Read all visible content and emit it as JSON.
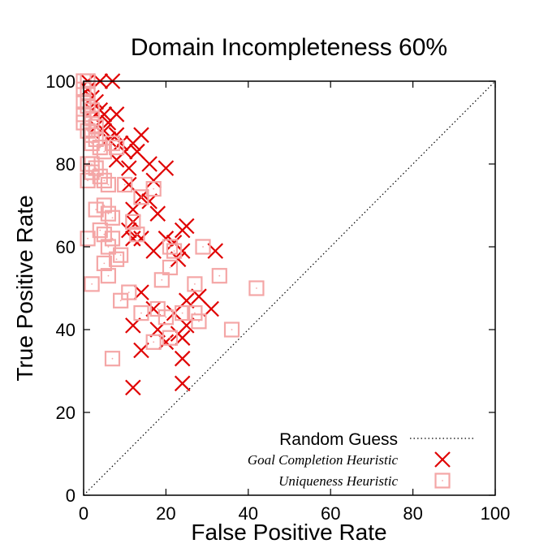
{
  "chart_data": {
    "type": "scatter",
    "title": "Domain Incompleteness 60%",
    "xlabel": "False Positive Rate",
    "ylabel": "True Positive Rate",
    "xlim": [
      0,
      100
    ],
    "ylim": [
      0,
      100
    ],
    "xticks": [
      "0",
      "20",
      "40",
      "60",
      "80",
      "100"
    ],
    "yticks": [
      "0",
      "20",
      "40",
      "60",
      "80",
      "100"
    ],
    "grid": false,
    "legend_position": "bottom-right",
    "random_guess": {
      "name": "Random Guess",
      "x": [
        0,
        100
      ],
      "y": [
        0,
        100
      ]
    },
    "series": [
      {
        "name": "Goal Completion Heuristic",
        "marker": "x",
        "color": "#e00000",
        "points": [
          [
            1,
            100
          ],
          [
            4,
            100
          ],
          [
            7,
            100
          ],
          [
            1,
            98
          ],
          [
            2,
            96
          ],
          [
            3,
            95
          ],
          [
            2,
            93
          ],
          [
            4,
            93
          ],
          [
            5,
            92
          ],
          [
            8,
            92
          ],
          [
            6,
            90
          ],
          [
            3,
            89
          ],
          [
            5,
            88
          ],
          [
            8,
            87
          ],
          [
            6,
            86
          ],
          [
            9,
            85
          ],
          [
            12,
            85
          ],
          [
            14,
            87
          ],
          [
            13,
            83
          ],
          [
            10,
            83
          ],
          [
            8,
            81
          ],
          [
            11,
            79
          ],
          [
            16,
            80
          ],
          [
            20,
            79
          ],
          [
            11,
            75
          ],
          [
            17,
            76
          ],
          [
            14,
            72
          ],
          [
            16,
            71
          ],
          [
            12,
            69
          ],
          [
            18,
            68
          ],
          [
            12,
            66
          ],
          [
            11,
            64
          ],
          [
            24,
            64
          ],
          [
            25,
            65
          ],
          [
            12,
            62
          ],
          [
            14,
            62
          ],
          [
            20,
            62
          ],
          [
            22,
            61
          ],
          [
            17,
            59
          ],
          [
            24,
            59
          ],
          [
            32,
            59
          ],
          [
            23,
            57
          ],
          [
            14,
            49
          ],
          [
            25,
            47
          ],
          [
            17,
            45
          ],
          [
            22,
            44
          ],
          [
            12,
            41
          ],
          [
            25,
            41
          ],
          [
            31,
            45
          ],
          [
            23,
            39
          ],
          [
            24,
            38
          ],
          [
            14,
            35
          ],
          [
            20,
            37
          ],
          [
            24,
            33
          ],
          [
            24,
            27
          ],
          [
            12,
            26
          ],
          [
            18,
            40
          ],
          [
            28,
            48
          ]
        ]
      },
      {
        "name": "Uniqueness Heuristic",
        "marker": "square",
        "color": "#f4a6a6",
        "points": [
          [
            0,
            100
          ],
          [
            1,
            100
          ],
          [
            0,
            98
          ],
          [
            1,
            97
          ],
          [
            0,
            95
          ],
          [
            1,
            94
          ],
          [
            2,
            93
          ],
          [
            0,
            92
          ],
          [
            2,
            91
          ],
          [
            0,
            90
          ],
          [
            3,
            89
          ],
          [
            1,
            88
          ],
          [
            2,
            87
          ],
          [
            3,
            86
          ],
          [
            2,
            85
          ],
          [
            4,
            84
          ],
          [
            5,
            83
          ],
          [
            7,
            85
          ],
          [
            8,
            84
          ],
          [
            1,
            80
          ],
          [
            2,
            80
          ],
          [
            3,
            79
          ],
          [
            2,
            78
          ],
          [
            4,
            77
          ],
          [
            1,
            76
          ],
          [
            5,
            76
          ],
          [
            6,
            75
          ],
          [
            10,
            75
          ],
          [
            17,
            74
          ],
          [
            14,
            72
          ],
          [
            3,
            69
          ],
          [
            5,
            70
          ],
          [
            6,
            68
          ],
          [
            7,
            67
          ],
          [
            12,
            66
          ],
          [
            4,
            64
          ],
          [
            5,
            63
          ],
          [
            7,
            62
          ],
          [
            13,
            63
          ],
          [
            1,
            62
          ],
          [
            6,
            60
          ],
          [
            21,
            60
          ],
          [
            22,
            59
          ],
          [
            29,
            60
          ],
          [
            9,
            58
          ],
          [
            8,
            57
          ],
          [
            5,
            56
          ],
          [
            21,
            55
          ],
          [
            6,
            53
          ],
          [
            19,
            52
          ],
          [
            27,
            51
          ],
          [
            2,
            51
          ],
          [
            33,
            53
          ],
          [
            11,
            49
          ],
          [
            9,
            47
          ],
          [
            42,
            50
          ],
          [
            14,
            44
          ],
          [
            18,
            45
          ],
          [
            24,
            44
          ],
          [
            27,
            44
          ],
          [
            20,
            43
          ],
          [
            28,
            42
          ],
          [
            17,
            37
          ],
          [
            21,
            38
          ],
          [
            36,
            40
          ],
          [
            7,
            33
          ]
        ]
      }
    ]
  }
}
